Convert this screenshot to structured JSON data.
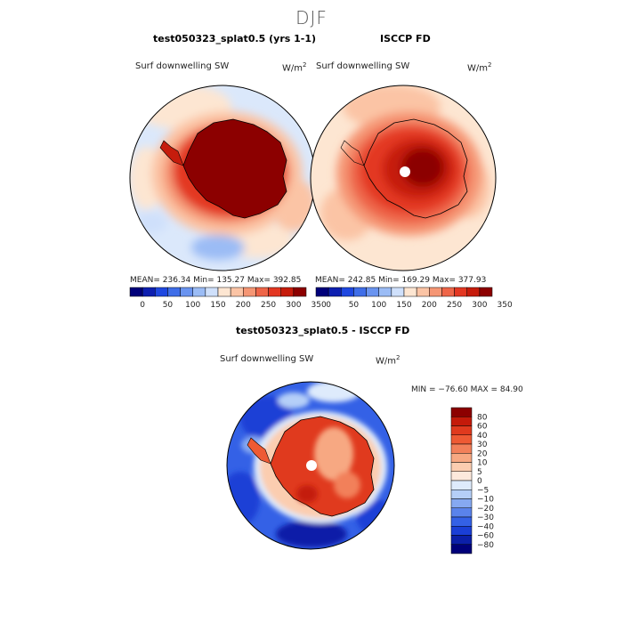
{
  "season": "DJF",
  "panels": [
    {
      "title": "test050323_splat0.5 (yrs 1-1)",
      "variable": "Surf downwelling SW",
      "units": "W/m",
      "units_exp": "2",
      "stats": "MEAN= 236.34   Min= 135.27   Max= 392.85",
      "has_pole_hole": false
    },
    {
      "title": "ISCCP FD",
      "variable": "Surf downwelling SW",
      "units": "W/m",
      "units_exp": "2",
      "stats": "MEAN= 242.85   Min= 169.29   Max= 377.93",
      "has_pole_hole": true
    },
    {
      "title": "test050323_splat0.5 - ISCCP FD",
      "variable": "Surf downwelling SW",
      "units": "W/m",
      "units_exp": "2",
      "stats": "MIN = −76.60  MAX =  84.90",
      "has_pole_hole": true
    }
  ],
  "colorbar_top": {
    "colors": [
      "#00007a",
      "#0d1fb0",
      "#1f48e0",
      "#3f6ee8",
      "#6a94f0",
      "#9bbcf5",
      "#cfe0fb",
      "#fde6d2",
      "#fbc4a5",
      "#f59674",
      "#ee6548",
      "#e33722",
      "#c61c0c",
      "#8c0000"
    ],
    "ticks": [
      "0",
      "50",
      "100",
      "150",
      "200",
      "250",
      "300",
      "350"
    ]
  },
  "colorbar_diff": {
    "colors": [
      "#8c0000",
      "#c41a0a",
      "#e03a1e",
      "#ee5a34",
      "#f2805a",
      "#f7a882",
      "#fbcdb0",
      "#fde9dc",
      "#deebfc",
      "#b5cff8",
      "#86a9f1",
      "#5a83eb",
      "#3461e6",
      "#1a3fd6",
      "#0b1fa8",
      "#00007a"
    ],
    "ticks": [
      "80",
      "60",
      "40",
      "30",
      "20",
      "10",
      "5",
      "0",
      "−5",
      "−10",
      "−20",
      "−30",
      "−40",
      "−60",
      "−80"
    ]
  }
}
